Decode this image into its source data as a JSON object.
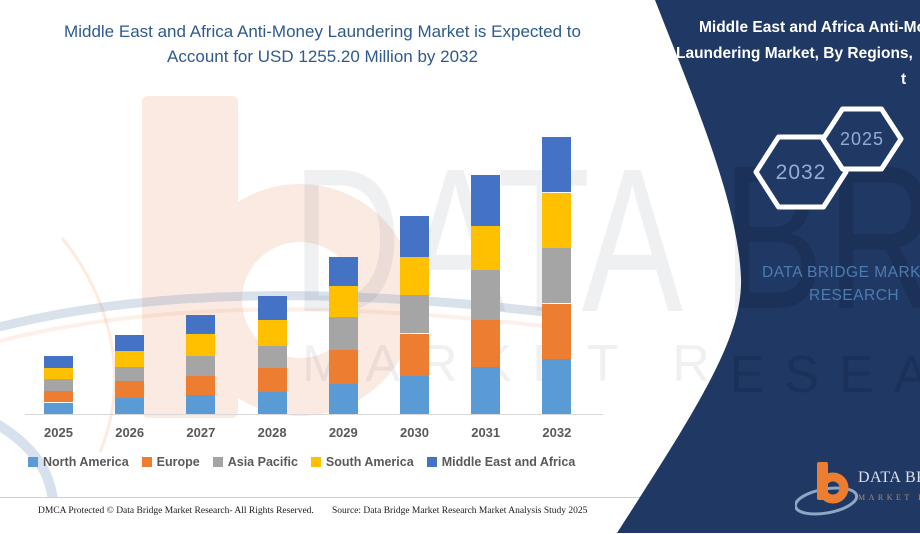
{
  "header": {
    "title_line1": "Middle East and Africa Anti-Money Laundering Market is Expected to",
    "title_line2": "Account for USD 1255.20 Million by 2032"
  },
  "chart_data": {
    "type": "bar",
    "stacked": true,
    "title": "Middle East and Africa Anti-Money Laundering Market is Expected to Account for USD 1255.20 Million by 2032",
    "unit": "USD Million",
    "categories": [
      "2025",
      "2026",
      "2027",
      "2028",
      "2029",
      "2030",
      "2031",
      "2032"
    ],
    "series": [
      {
        "name": "North America",
        "color": "#5B9BD5",
        "values": [
          52,
          72,
          86,
          98,
          136,
          174,
          212,
          248
        ]
      },
      {
        "name": "Europe",
        "color": "#ED7D31",
        "values": [
          53,
          76,
          88,
          110,
          153,
          191,
          214,
          253
        ]
      },
      {
        "name": "Asia Pacific",
        "color": "#A5A5A5",
        "values": [
          52,
          66,
          91,
          102,
          150,
          176,
          226,
          253
        ]
      },
      {
        "name": "South America",
        "color": "#FFC000",
        "values": [
          52,
          72,
          96,
          116,
          142,
          170,
          202,
          250
        ]
      },
      {
        "name": "Middle East and Africa",
        "color": "#4472C4",
        "values": [
          56,
          74,
          90,
          111,
          133,
          186,
          228,
          251.2
        ]
      }
    ],
    "totals": [
      265,
      360,
      451,
      537,
      714,
      897,
      1082,
      1255.2
    ],
    "highlight_total_2032": "1255.20",
    "legend_position": "bottom",
    "gridlines": false,
    "y_axis_visible": false
  },
  "right_panel": {
    "title_line1": "Middle East and Africa Anti-Money",
    "title_line2": "Laundering Market, By Regions,",
    "title_line3": "t",
    "hexagon_back_label": "2032",
    "hexagon_front_label": "2025",
    "brand_line1": "DATA BRIDGE MARKET",
    "brand_line2": "RESEARCH",
    "panel_color": "#1F3864",
    "hexagon_text_color": "#96ACD4"
  },
  "watermark": {
    "big_text": "DATA BRIDGE",
    "sub_text": "MARKET RESEARCH"
  },
  "logo": {
    "name_text": "DATA BRIDGE",
    "sub_text": "MARKET RESEARCH",
    "orange": "#ED7D31",
    "swoosh_color": "#8FA6C4"
  },
  "footer": {
    "left_text": "DMCA Protected © Data Bridge Market Research-  All Rights Reserved.",
    "source_text": "Source: Data Bridge Market Research  Market Analysis Study 2025"
  }
}
